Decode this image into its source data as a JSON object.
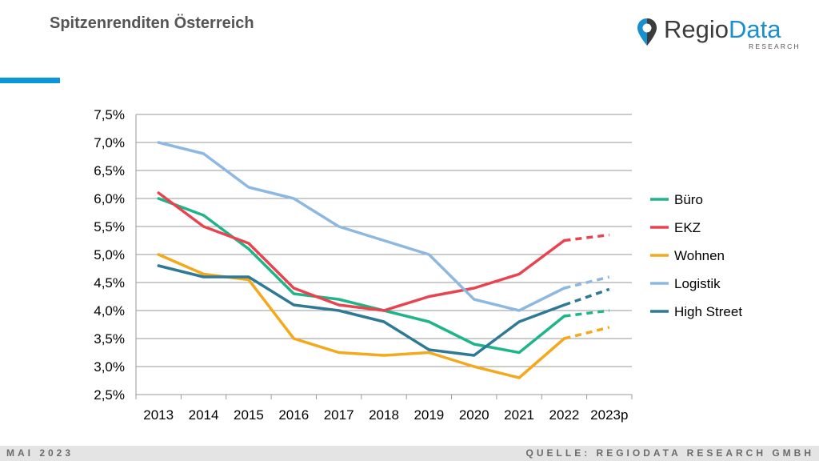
{
  "header": {
    "title": "Spitzenrenditen Österreich",
    "logo_word1": "Regio",
    "logo_word2": "Data",
    "logo_sub": "RESEARCH",
    "accent_color": "#0a97d9"
  },
  "footer": {
    "left": "MAI 2023",
    "right": "QUELLE: REGIODATA RESEARCH GMBH"
  },
  "chart_data": {
    "type": "line",
    "title": "",
    "xlabel": "",
    "ylabel": "",
    "categories": [
      "2013",
      "2014",
      "2015",
      "2016",
      "2017",
      "2018",
      "2019",
      "2020",
      "2021",
      "2022",
      "2023p"
    ],
    "y_ticks": [
      "2,5%",
      "3,0%",
      "3,5%",
      "4,0%",
      "4,5%",
      "5,0%",
      "5,5%",
      "6,0%",
      "6,5%",
      "7,0%",
      "7,5%"
    ],
    "ylim": [
      2.5,
      7.5
    ],
    "grid": true,
    "legend_position": "right",
    "forecast_from_index": 9,
    "forecast_style": "dashed",
    "series": [
      {
        "name": "Büro",
        "color": "#1fb58a",
        "values": [
          6.0,
          5.7,
          5.1,
          4.3,
          4.2,
          4.0,
          3.8,
          3.4,
          3.25,
          3.9,
          4.0
        ]
      },
      {
        "name": "EKZ",
        "color": "#ea4350",
        "values": [
          6.1,
          5.5,
          5.2,
          4.4,
          4.1,
          4.0,
          4.25,
          4.4,
          4.65,
          5.25,
          5.35
        ]
      },
      {
        "name": "Wohnen",
        "color": "#f4a91c",
        "values": [
          5.0,
          4.65,
          4.55,
          3.5,
          3.25,
          3.2,
          3.25,
          3.0,
          2.8,
          3.5,
          3.7
        ]
      },
      {
        "name": "Logistik",
        "color": "#8db8e2",
        "values": [
          7.0,
          6.8,
          6.2,
          6.0,
          5.5,
          5.25,
          5.0,
          4.2,
          4.0,
          4.4,
          4.6
        ]
      },
      {
        "name": "High Street",
        "color": "#2e7a96",
        "values": [
          4.8,
          4.6,
          4.6,
          4.1,
          4.0,
          3.8,
          3.3,
          3.2,
          3.8,
          4.1,
          4.38
        ]
      }
    ]
  }
}
